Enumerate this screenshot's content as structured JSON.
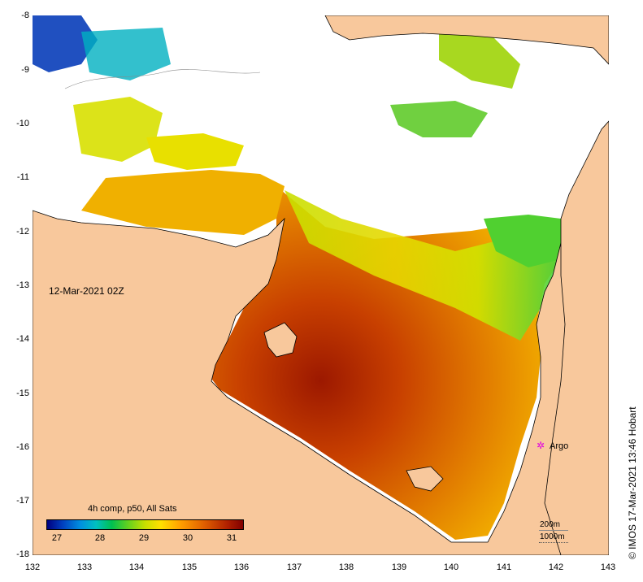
{
  "map": {
    "timestamp": "12-Mar-2021 02Z",
    "credit": "© IMOS 17-Mar-2021 13:46 Hobart",
    "x_ticks": [
      "132",
      "133",
      "134",
      "135",
      "136",
      "137",
      "138",
      "139",
      "140",
      "141",
      "142",
      "143"
    ],
    "y_ticks": [
      "-8",
      "-9",
      "-10",
      "-11",
      "-12",
      "-13",
      "-14",
      "-15",
      "-16",
      "-17",
      "-18"
    ],
    "lon_range": [
      132,
      143
    ],
    "lat_range": [
      -18,
      -8
    ],
    "colors": {
      "land": "#f8c89c",
      "cloud": "#ffffff",
      "argo": "#e000e0"
    }
  },
  "legend": {
    "title": "4h comp, p50, All Sats",
    "ticks": [
      "27",
      "28",
      "29",
      "30",
      "31"
    ],
    "range": [
      26.8,
      31.2
    ]
  },
  "markers": {
    "argo_label": "Argo",
    "argo_lon": 141.7,
    "argo_lat": -16.0
  },
  "depth_contours": {
    "a_label": "200m",
    "b_label": "1000m"
  }
}
